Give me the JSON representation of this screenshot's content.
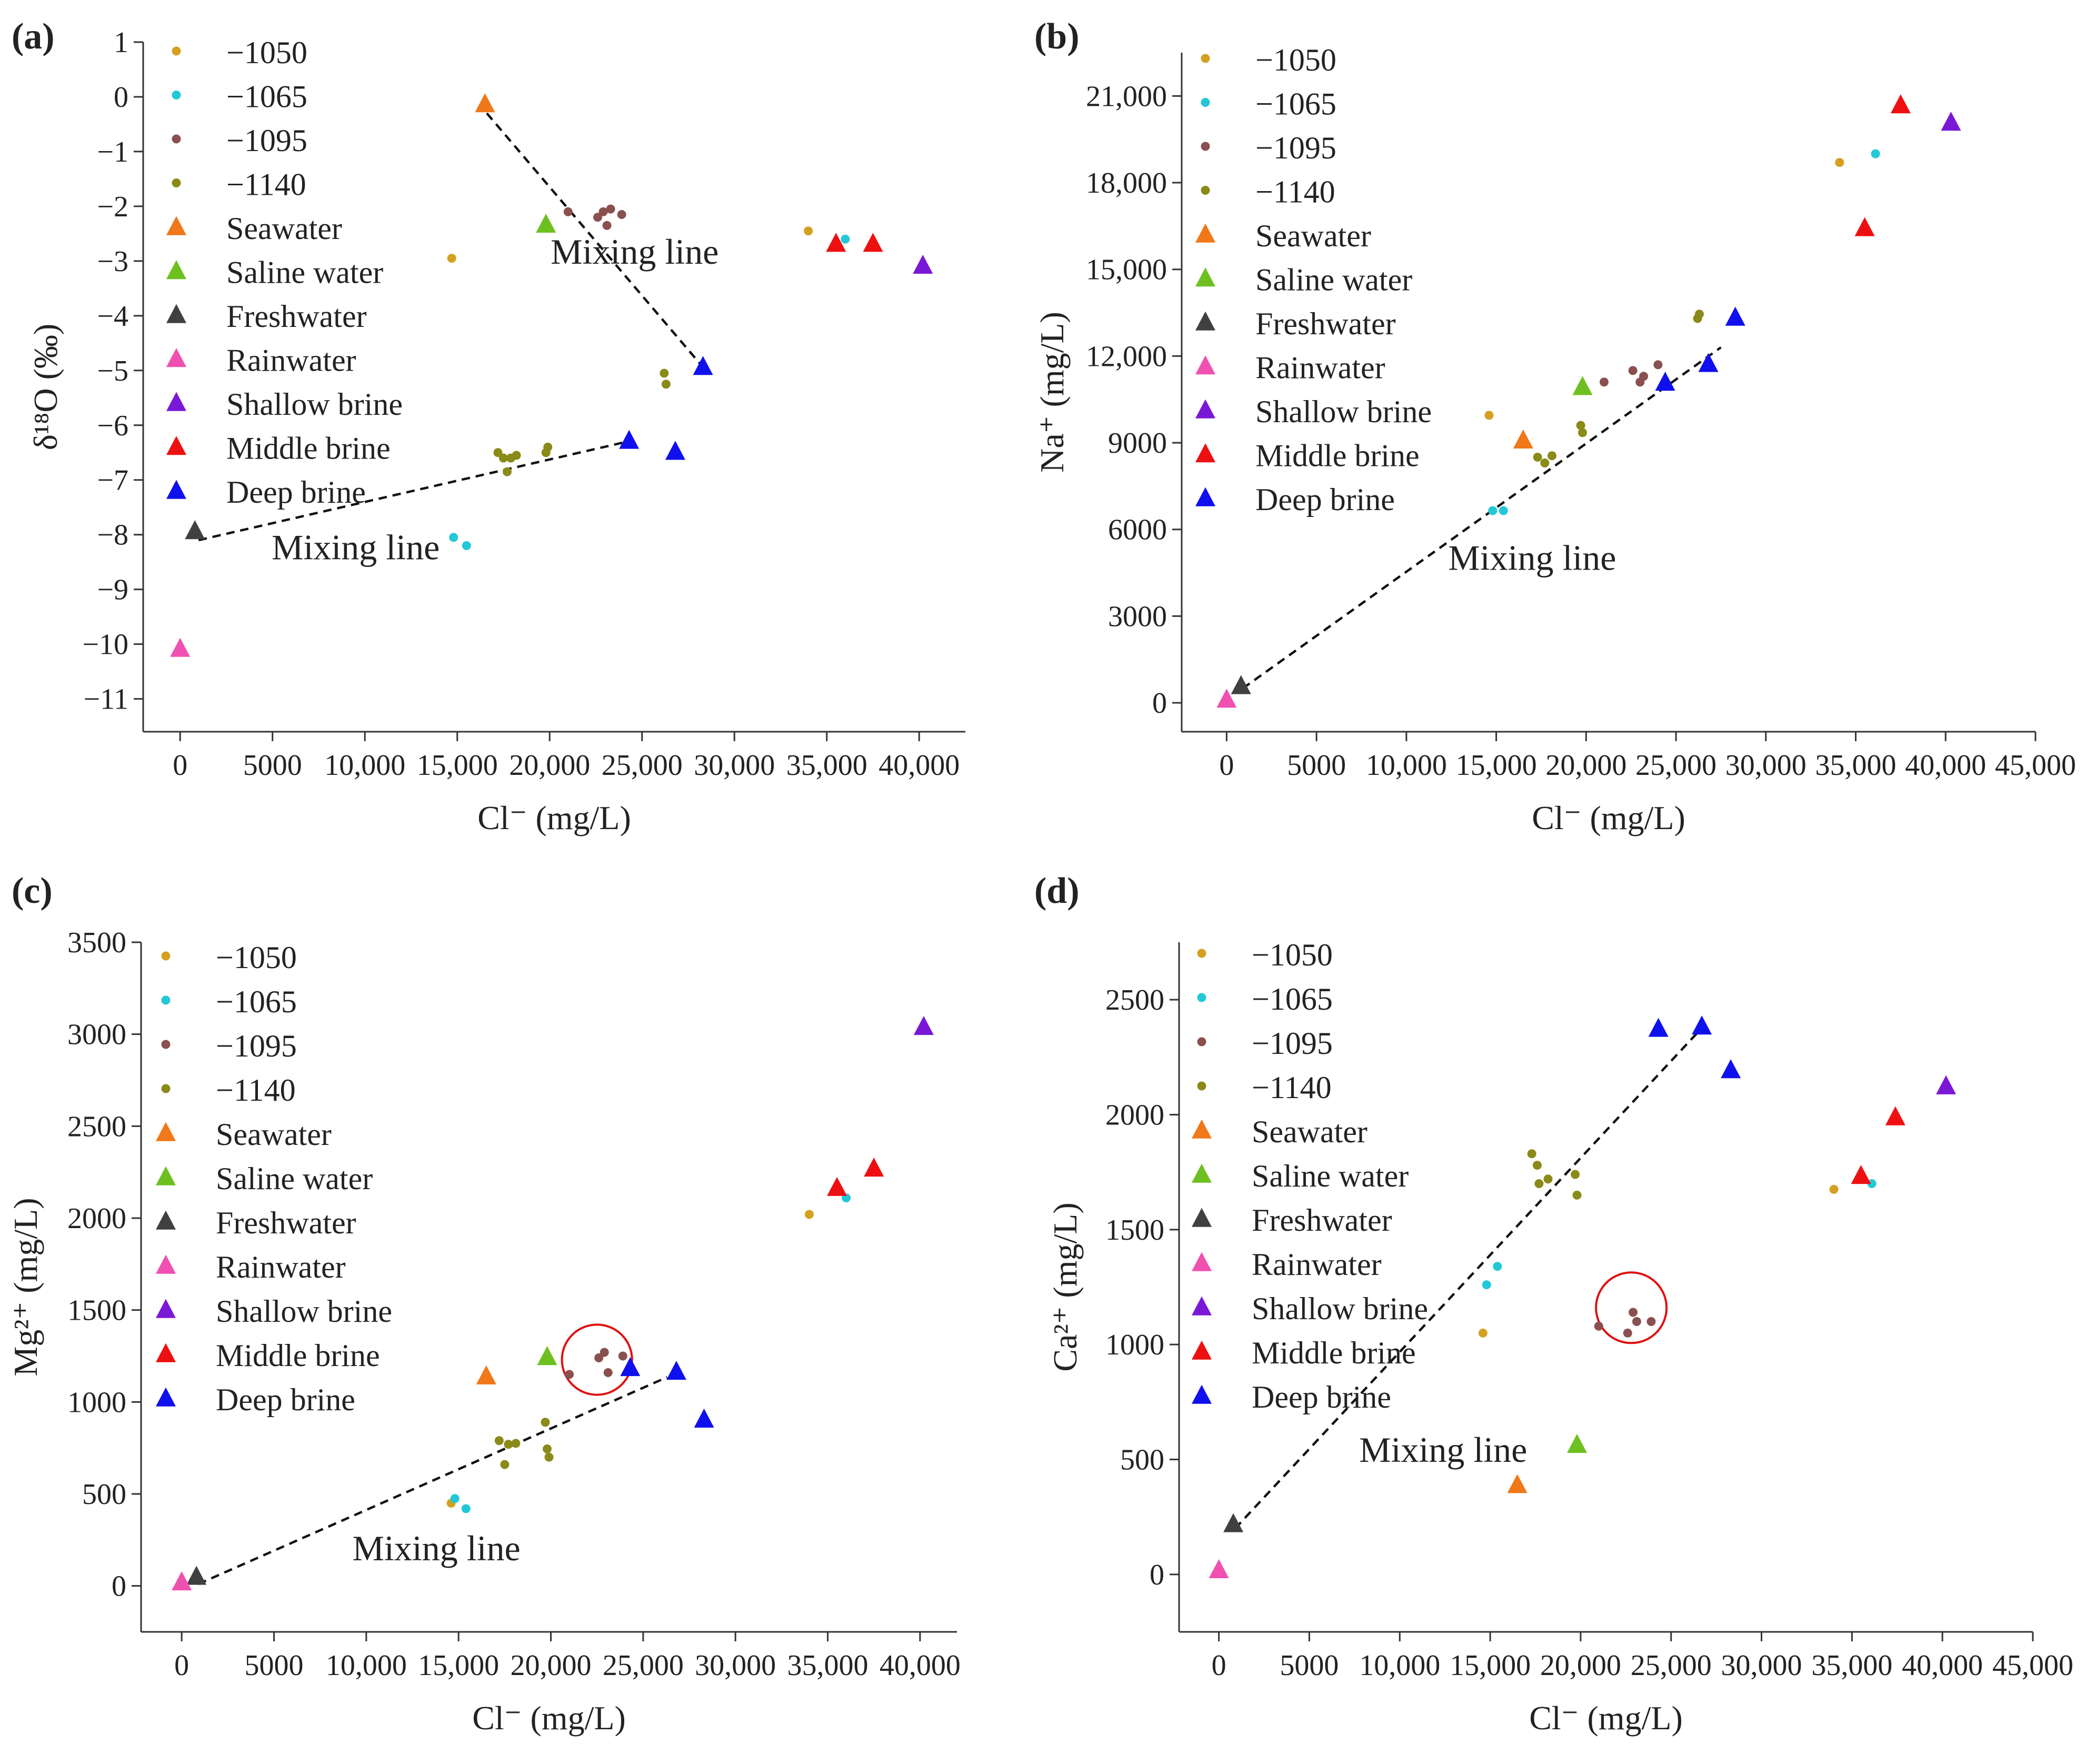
{
  "colors": {
    "-1050": "#d4a020",
    "-1065": "#22c8d8",
    "-1095": "#8a5050",
    "-1140": "#8a8a18",
    "Seawater": "#f07818",
    "Saline water": "#6ec020",
    "Freshwater": "#404040",
    "Rainwater": "#f050b0",
    "Shallow brine": "#7a18d8",
    "Middle brine": "#ee1010",
    "Deep brine": "#1010ee",
    "axis": "#333333",
    "mixing_line": "#111111",
    "circle": "#e01010"
  },
  "legend_labels": [
    {
      "key": "-1050",
      "label": "−1050",
      "marker": "dot"
    },
    {
      "key": "-1065",
      "label": "−1065",
      "marker": "dot"
    },
    {
      "key": "-1095",
      "label": "−1095",
      "marker": "dot"
    },
    {
      "key": "-1140",
      "label": "−1140",
      "marker": "dot"
    },
    {
      "key": "Seawater",
      "label": "Seawater",
      "marker": "tri"
    },
    {
      "key": "Saline water",
      "label": "Saline water",
      "marker": "tri"
    },
    {
      "key": "Freshwater",
      "label": "Freshwater",
      "marker": "tri"
    },
    {
      "key": "Rainwater",
      "label": "Rainwater",
      "marker": "tri"
    },
    {
      "key": "Shallow brine",
      "label": "Shallow brine",
      "marker": "tri"
    },
    {
      "key": "Middle brine",
      "label": "Middle brine",
      "marker": "tri"
    },
    {
      "key": "Deep brine",
      "label": "Deep brine",
      "marker": "tri"
    }
  ],
  "chart_data": [
    {
      "id": "a",
      "panel_label": "(a)",
      "type": "scatter",
      "xlabel": "Cl⁻ (mg/L)",
      "ylabel": "δ¹⁸O (‰)",
      "xlim": [
        -2000,
        42500
      ],
      "ylim": [
        -11.6,
        1
      ],
      "xticks": [
        0,
        5000,
        10000,
        15000,
        20000,
        25000,
        30000,
        35000,
        40000
      ],
      "xtick_labels": [
        "0",
        "5000",
        "10,000",
        "15,000",
        "20,000",
        "25,000",
        "30,000",
        "35,000",
        "40,000"
      ],
      "yticks": [
        1,
        0,
        -1,
        -2,
        -3,
        -4,
        -5,
        -6,
        -7,
        -8,
        -9,
        -10,
        -11
      ],
      "ytick_labels": [
        "1",
        "0",
        "−1",
        "−2",
        "−3",
        "−4",
        "−5",
        "−6",
        "−7",
        "−8",
        "−9",
        "−10",
        "−11"
      ],
      "series": [
        {
          "name": "-1050",
          "points": [
            [
              14700,
              -2.95
            ],
            [
              34000,
              -2.45
            ]
          ]
        },
        {
          "name": "-1065",
          "points": [
            [
              14800,
              -8.05
            ],
            [
              15500,
              -8.2
            ],
            [
              36000,
              -2.6
            ]
          ]
        },
        {
          "name": "-1095",
          "points": [
            [
              21000,
              -2.1
            ],
            [
              22600,
              -2.2
            ],
            [
              22900,
              -2.1
            ],
            [
              23100,
              -2.35
            ],
            [
              23300,
              -2.05
            ],
            [
              23900,
              -2.15
            ]
          ]
        },
        {
          "name": "-1140",
          "points": [
            [
              17200,
              -6.5
            ],
            [
              17500,
              -6.6
            ],
            [
              17700,
              -6.85
            ],
            [
              17900,
              -6.6
            ],
            [
              18200,
              -6.55
            ],
            [
              19800,
              -6.5
            ],
            [
              19900,
              -6.4
            ],
            [
              26200,
              -5.05
            ],
            [
              26300,
              -5.25
            ]
          ]
        },
        {
          "name": "Seawater",
          "points": [
            [
              16500,
              -0.15
            ]
          ]
        },
        {
          "name": "Saline water",
          "points": [
            [
              19800,
              -2.35
            ]
          ]
        },
        {
          "name": "Freshwater",
          "points": [
            [
              800,
              -7.95
            ]
          ]
        },
        {
          "name": "Rainwater",
          "points": [
            [
              0,
              -10.1
            ]
          ]
        },
        {
          "name": "Shallow brine",
          "points": [
            [
              40200,
              -3.1
            ]
          ]
        },
        {
          "name": "Middle brine",
          "points": [
            [
              35500,
              -2.7
            ],
            [
              37500,
              -2.7
            ]
          ]
        },
        {
          "name": "Deep brine",
          "points": [
            [
              24300,
              -6.3
            ],
            [
              26800,
              -6.5
            ],
            [
              28300,
              -4.95
            ]
          ]
        }
      ],
      "mixing_lines": [
        {
          "from": [
            16600,
            -0.3
          ],
          "to": [
            28200,
            -4.9
          ]
        },
        {
          "from": [
            1000,
            -8.1
          ],
          "to": [
            24200,
            -6.3
          ]
        }
      ],
      "annotations": [
        {
          "text": "Mixing line",
          "x": 24600,
          "y": -3.05
        },
        {
          "text": "Mixing line",
          "x": 9500,
          "y": -8.45
        }
      ],
      "circle": null
    },
    {
      "id": "b",
      "panel_label": "(b)",
      "type": "scatter",
      "xlabel": "Cl⁻ (mg/L)",
      "ylabel": "Na⁺ (mg/L)",
      "xlim": [
        -2500,
        45000
      ],
      "ylim": [
        -1000,
        22500
      ],
      "xticks": [
        0,
        5000,
        10000,
        15000,
        20000,
        25000,
        30000,
        35000,
        40000,
        45000
      ],
      "xtick_labels": [
        "0",
        "5000",
        "10,000",
        "15,000",
        "20,000",
        "25,000",
        "30,000",
        "35,000",
        "40,000",
        "45,000"
      ],
      "yticks": [
        0,
        3000,
        6000,
        9000,
        12000,
        15000,
        18000,
        21000
      ],
      "ytick_labels": [
        "0",
        "3000",
        "6000",
        "9000",
        "12,000",
        "15,000",
        "18,000",
        "21,000"
      ],
      "series": [
        {
          "name": "-1050",
          "points": [
            [
              14600,
              9950
            ],
            [
              34100,
              18700
            ]
          ]
        },
        {
          "name": "-1065",
          "points": [
            [
              14800,
              6650
            ],
            [
              15400,
              6650
            ],
            [
              36100,
              19000
            ]
          ]
        },
        {
          "name": "-1095",
          "points": [
            [
              21000,
              11100
            ],
            [
              22600,
              11500
            ],
            [
              23000,
              11100
            ],
            [
              23200,
              11300
            ],
            [
              24000,
              11700
            ]
          ]
        },
        {
          "name": "-1140",
          "points": [
            [
              17300,
              8500
            ],
            [
              17700,
              8300
            ],
            [
              18100,
              8550
            ],
            [
              19700,
              9600
            ],
            [
              19800,
              9350
            ],
            [
              26200,
              13300
            ],
            [
              26300,
              13450
            ]
          ]
        },
        {
          "name": "Seawater",
          "points": [
            [
              16500,
              9050
            ]
          ]
        },
        {
          "name": "Saline water",
          "points": [
            [
              19800,
              10900
            ]
          ]
        },
        {
          "name": "Freshwater",
          "points": [
            [
              800,
              550
            ]
          ]
        },
        {
          "name": "Rainwater",
          "points": [
            [
              0,
              80
            ]
          ]
        },
        {
          "name": "Shallow brine",
          "points": [
            [
              40300,
              20050
            ]
          ]
        },
        {
          "name": "Middle brine",
          "points": [
            [
              35500,
              16400
            ],
            [
              37500,
              20650
            ]
          ]
        },
        {
          "name": "Deep brine",
          "points": [
            [
              24400,
              11050
            ],
            [
              26800,
              11700
            ],
            [
              28300,
              13300
            ]
          ]
        }
      ],
      "mixing_lines": [
        {
          "from": [
            900,
            500
          ],
          "to": [
            27500,
            12300
          ]
        }
      ],
      "annotations": [
        {
          "text": "Mixing line",
          "x": 17000,
          "y": 4600
        }
      ],
      "circle": null
    },
    {
      "id": "c",
      "panel_label": "(c)",
      "type": "scatter",
      "xlabel": "Cl⁻ (mg/L)",
      "ylabel": "Mg²⁺ (mg/L)",
      "xlim": [
        -2200,
        42000
      ],
      "ylim": [
        -250,
        3500
      ],
      "xticks": [
        0,
        5000,
        10000,
        15000,
        20000,
        25000,
        30000,
        35000,
        40000
      ],
      "xtick_labels": [
        "0",
        "5000",
        "10,000",
        "15,000",
        "20,000",
        "25,000",
        "30,000",
        "35,000",
        "40,000"
      ],
      "yticks": [
        0,
        500,
        1000,
        1500,
        2000,
        2500,
        3000,
        3500
      ],
      "ytick_labels": [
        "0",
        "500",
        "1000",
        "1500",
        "2000",
        "2500",
        "3000",
        "3500"
      ],
      "series": [
        {
          "name": "-1050",
          "points": [
            [
              14600,
              450
            ],
            [
              34000,
              2020
            ]
          ]
        },
        {
          "name": "-1065",
          "points": [
            [
              14800,
              475
            ],
            [
              15400,
              420
            ],
            [
              36000,
              2110
            ]
          ]
        },
        {
          "name": "-1095",
          "points": [
            [
              21000,
              1150
            ],
            [
              22600,
              1240
            ],
            [
              22900,
              1270
            ],
            [
              23100,
              1160
            ],
            [
              23900,
              1250
            ]
          ]
        },
        {
          "name": "-1140",
          "points": [
            [
              17200,
              790
            ],
            [
              17500,
              660
            ],
            [
              17700,
              770
            ],
            [
              18100,
              775
            ],
            [
              19700,
              890
            ],
            [
              19800,
              745
            ],
            [
              19900,
              700
            ]
          ]
        },
        {
          "name": "Seawater",
          "points": [
            [
              16500,
              1135
            ]
          ]
        },
        {
          "name": "Saline water",
          "points": [
            [
              19800,
              1240
            ]
          ]
        },
        {
          "name": "Freshwater",
          "points": [
            [
              800,
              45
            ]
          ]
        },
        {
          "name": "Rainwater",
          "points": [
            [
              0,
              15
            ]
          ]
        },
        {
          "name": "Shallow brine",
          "points": [
            [
              40200,
              3035
            ]
          ]
        },
        {
          "name": "Middle brine",
          "points": [
            [
              35500,
              2160
            ],
            [
              37500,
              2265
            ]
          ]
        },
        {
          "name": "Deep brine",
          "points": [
            [
              24300,
              1180
            ],
            [
              26800,
              1160
            ],
            [
              28300,
              900
            ]
          ]
        }
      ],
      "mixing_lines": [
        {
          "from": [
            900,
            10
          ],
          "to": [
            26300,
            1135
          ]
        }
      ],
      "annotations": [
        {
          "text": "Mixing line",
          "x": 13800,
          "y": 140
        }
      ],
      "circle": {
        "cx": 22500,
        "cy": 1230,
        "r_x": 1900
      }
    },
    {
      "id": "d",
      "panel_label": "(d)",
      "type": "scatter",
      "xlabel": "Cl⁻ (mg/L)",
      "ylabel": "Ca²⁺ (mg/L)",
      "xlim": [
        -2200,
        45000
      ],
      "ylim": [
        -250,
        2750
      ],
      "xticks": [
        0,
        5000,
        10000,
        15000,
        20000,
        25000,
        30000,
        35000,
        40000,
        45000
      ],
      "xtick_labels": [
        "0",
        "5000",
        "10,000",
        "15,000",
        "20,000",
        "25,000",
        "30,000",
        "35,000",
        "40,000",
        "45,000"
      ],
      "yticks": [
        0,
        500,
        1000,
        1500,
        2000,
        2500
      ],
      "ytick_labels": [
        "0",
        "500",
        "1000",
        "1500",
        "2000",
        "2500"
      ],
      "series": [
        {
          "name": "-1050",
          "points": [
            [
              14600,
              1050
            ],
            [
              34000,
              1675
            ]
          ]
        },
        {
          "name": "-1065",
          "points": [
            [
              14800,
              1260
            ],
            [
              15400,
              1340
            ],
            [
              36100,
              1700
            ]
          ]
        },
        {
          "name": "-1095",
          "points": [
            [
              21000,
              1080
            ],
            [
              22600,
              1050
            ],
            [
              22900,
              1140
            ],
            [
              23100,
              1100
            ],
            [
              23900,
              1100
            ]
          ]
        },
        {
          "name": "-1140",
          "points": [
            [
              17300,
              1830
            ],
            [
              17600,
              1780
            ],
            [
              17700,
              1700
            ],
            [
              18200,
              1720
            ],
            [
              19700,
              1740
            ],
            [
              19800,
              1650
            ]
          ]
        },
        {
          "name": "Seawater",
          "points": [
            [
              16500,
              385
            ]
          ]
        },
        {
          "name": "Saline water",
          "points": [
            [
              19800,
              560
            ]
          ]
        },
        {
          "name": "Freshwater",
          "points": [
            [
              800,
              215
            ]
          ]
        },
        {
          "name": "Rainwater",
          "points": [
            [
              0,
              15
            ]
          ]
        },
        {
          "name": "Shallow brine",
          "points": [
            [
              40200,
              2120
            ]
          ]
        },
        {
          "name": "Middle brine",
          "points": [
            [
              35500,
              1730
            ],
            [
              37400,
              1985
            ]
          ]
        },
        {
          "name": "Deep brine",
          "points": [
            [
              24300,
              2370
            ],
            [
              26700,
              2380
            ],
            [
              28300,
              2190
            ]
          ]
        }
      ],
      "mixing_lines": [
        {
          "from": [
            900,
            200
          ],
          "to": [
            26500,
            2360
          ]
        }
      ],
      "annotations": [
        {
          "text": "Mixing line",
          "x": 12400,
          "y": 490
        }
      ],
      "circle": {
        "cx": 22800,
        "cy": 1160,
        "r_x": 1950
      }
    }
  ]
}
